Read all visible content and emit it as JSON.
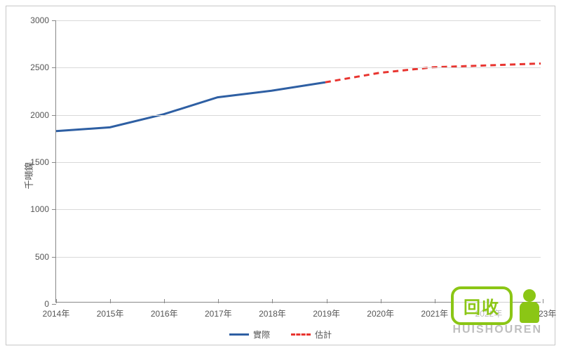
{
  "chart": {
    "type": "line",
    "ylabel": "千噸鎳",
    "label_fontsize": 13,
    "ylim": [
      0,
      3000
    ],
    "ytick_step": 500,
    "yticks": [
      0,
      500,
      1000,
      1500,
      2000,
      2500,
      3000
    ],
    "xticks": [
      "2014年",
      "2015年",
      "2016年",
      "2017年",
      "2018年",
      "2019年",
      "2020年",
      "2021年",
      "2022年",
      "2023年"
    ],
    "grid_color": "#d9d9d9",
    "axis_color": "#888888",
    "background_color": "#ffffff",
    "border_color": "#c8c8c8",
    "tick_fontsize": 12,
    "tick_color": "#555555",
    "series": [
      {
        "name": "實際",
        "color": "#2e5fa3",
        "line_width": 3,
        "dash": "solid",
        "x_idx": [
          0,
          1,
          2,
          3,
          4,
          5
        ],
        "y": [
          1820,
          1860,
          2000,
          2180,
          2250,
          2340
        ]
      },
      {
        "name": "估計",
        "color": "#e8342f",
        "line_width": 3,
        "dash": "8,6",
        "x_idx": [
          5,
          6,
          7,
          8,
          9
        ],
        "y": [
          2340,
          2440,
          2500,
          2520,
          2540
        ]
      }
    ],
    "legend": {
      "position": "bottom",
      "items": [
        {
          "label": "實際",
          "color": "#2e5fa3",
          "dash": "solid"
        },
        {
          "label": "估計",
          "color": "#e8342f",
          "dash": "dashed"
        }
      ]
    }
  },
  "watermark": {
    "box_text": "回收",
    "box_border_color": "#8bc615",
    "box_text_color": "#8bc615",
    "person_color": "#8bc615",
    "url": "HUISHOUREN",
    "url_color": "#bfbfbf"
  }
}
